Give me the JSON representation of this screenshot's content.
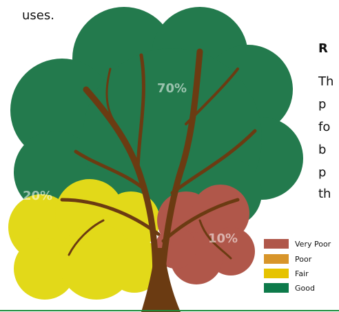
{
  "text": {
    "intro_tail": "uses.",
    "heading_fragment": "R",
    "paragraph_fragments": [
      "Th",
      "p",
      "fo",
      "b",
      "p",
      "th"
    ]
  },
  "tree": {
    "labels": [
      "70%",
      "20%",
      "10%"
    ]
  },
  "legend": [
    "Very Poor",
    "Poor",
    "Fair",
    "Good"
  ]
}
